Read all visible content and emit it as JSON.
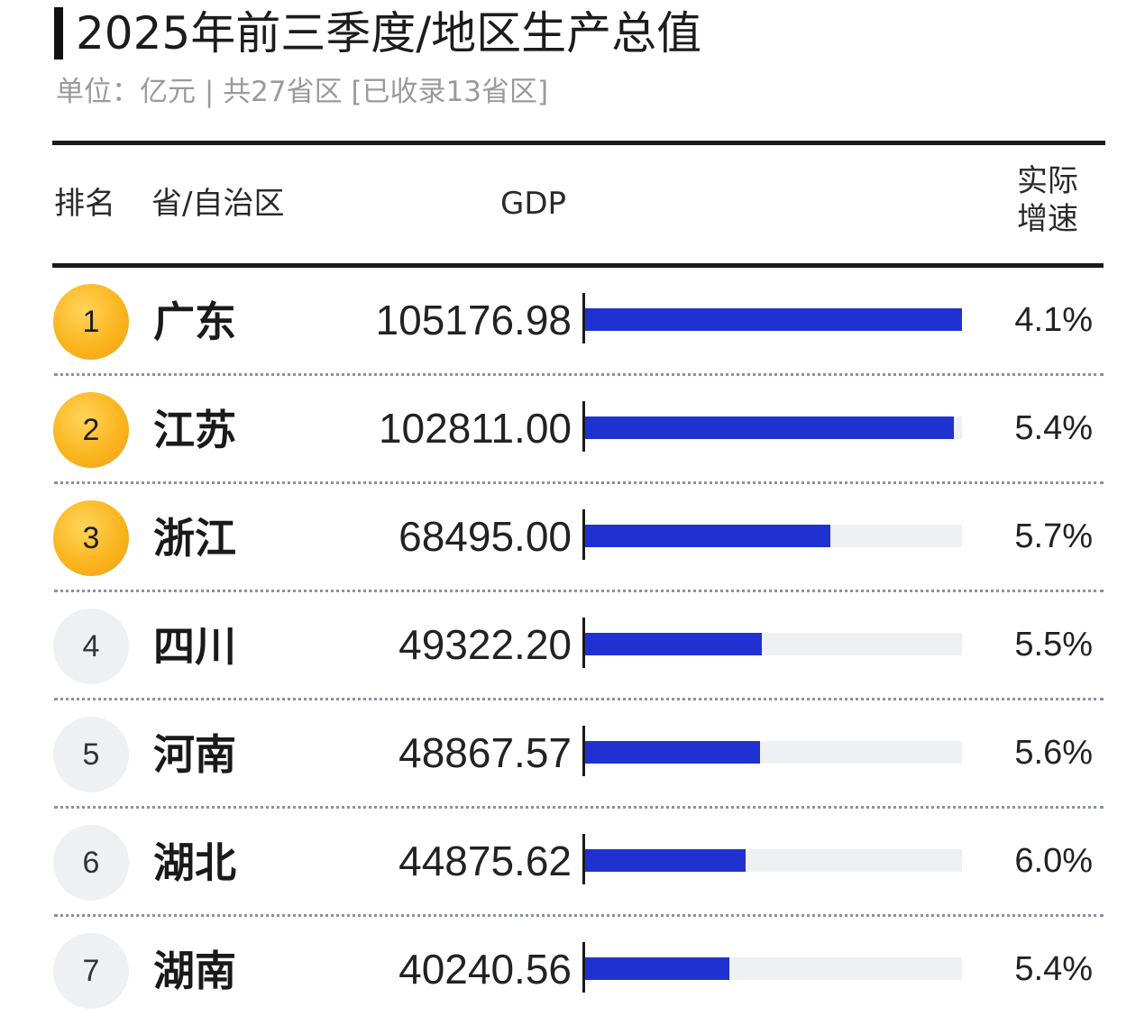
{
  "chart_data": {
    "type": "bar",
    "title": "2025年前三季度/地区生产总值",
    "subtitle": "单位：亿元 | 共27省区 [已收录13省区]",
    "headers": {
      "rank": "排名",
      "province": "省/自治区",
      "gdp": "GDP",
      "growth": "实际增速"
    },
    "bar_max": 105176.98,
    "colors": {
      "bar": "#1f32d1",
      "track": "#eef0f4",
      "top3_badge": "#fbb51f",
      "other_badge": "#eef0f3"
    },
    "rows": [
      {
        "rank": "1",
        "province": "广东",
        "gdp": "105176.98",
        "value": 105176.98,
        "growth": "4.1%",
        "top3": true
      },
      {
        "rank": "2",
        "province": "江苏",
        "gdp": "102811.00",
        "value": 102811.0,
        "growth": "5.4%",
        "top3": true
      },
      {
        "rank": "3",
        "province": "浙江",
        "gdp": "68495.00",
        "value": 68495.0,
        "growth": "5.7%",
        "top3": true
      },
      {
        "rank": "4",
        "province": "四川",
        "gdp": "49322.20",
        "value": 49322.2,
        "growth": "5.5%",
        "top3": false
      },
      {
        "rank": "5",
        "province": "河南",
        "gdp": "48867.57",
        "value": 48867.57,
        "growth": "5.6%",
        "top3": false
      },
      {
        "rank": "6",
        "province": "湖北",
        "gdp": "44875.62",
        "value": 44875.62,
        "growth": "6.0%",
        "top3": false
      },
      {
        "rank": "7",
        "province": "湖南",
        "gdp": "40240.56",
        "value": 40240.56,
        "growth": "5.4%",
        "top3": false
      }
    ]
  }
}
